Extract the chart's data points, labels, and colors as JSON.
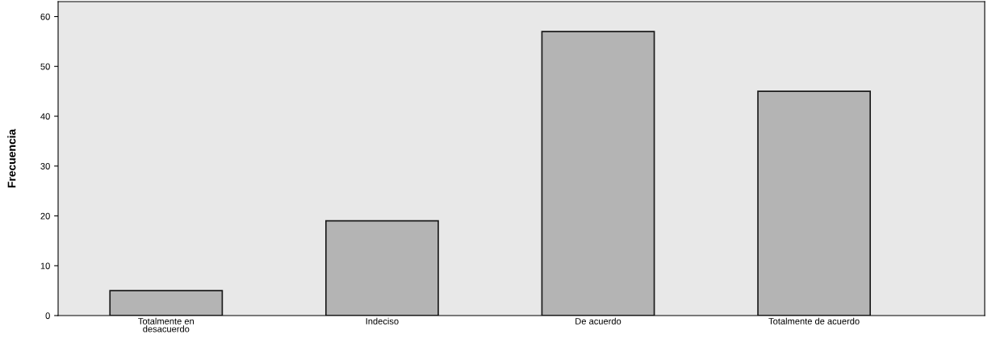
{
  "chart_data": {
    "type": "bar",
    "ylabel": "Frecuencia",
    "categories": [
      "Totalmente en\ndesacuerdo",
      "Indeciso",
      "De acuerdo",
      "Totalmente de acuerdo"
    ],
    "values": [
      5,
      19,
      57,
      45
    ],
    "color": "#b4b4b4",
    "ylim": [
      0,
      63
    ],
    "yticks": [
      0,
      10,
      20,
      30,
      40,
      50,
      60
    ],
    "grid": false,
    "legend": false
  }
}
